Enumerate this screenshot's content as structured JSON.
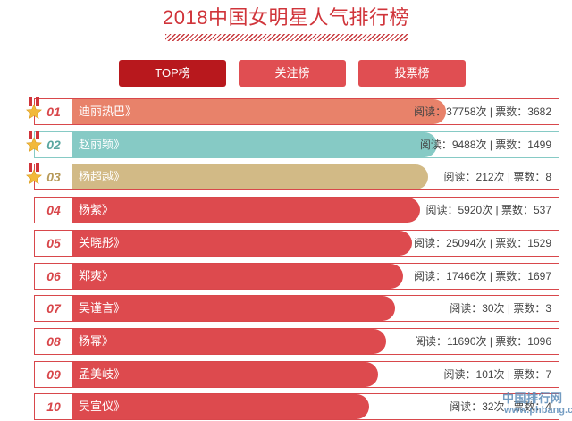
{
  "page": {
    "title": "2018中国女明星人气排行榜"
  },
  "tabs": [
    {
      "label": "TOP榜",
      "active": true
    },
    {
      "label": "关注榜",
      "active": false
    },
    {
      "label": "投票榜",
      "active": false
    }
  ],
  "colors": {
    "accent": "#d0343a",
    "tab_active": "#b8181d",
    "tab_inactive": "#e04e52",
    "bar_red": "#dd4a4e",
    "bar_rank1": "#e8826a",
    "bar_rank2": "#86cac5",
    "bar_rank3": "#d2ba86"
  },
  "ranking": [
    {
      "rank": "01",
      "name": "迪丽热巴》",
      "stats": "阅读：37758次 | 票数：3682",
      "bar_color": "#e8826a",
      "num_color": "#d8474b",
      "medal": true,
      "bar_fraction": 1.0
    },
    {
      "rank": "02",
      "name": "赵丽颖》",
      "stats": "阅读：9488次 | 票数：1499",
      "bar_color": "#86cac5",
      "num_color": "#5aa6a0",
      "medal": true,
      "bar_fraction": 0.975
    },
    {
      "rank": "03",
      "name": "杨超越》",
      "stats": "阅读：212次 | 票数：8",
      "bar_color": "#d2ba86",
      "num_color": "#b79a5a",
      "medal": true,
      "bar_fraction": 0.952
    },
    {
      "rank": "04",
      "name": "杨紫》",
      "stats": "阅读：5920次 | 票数：537",
      "bar_color": "#dd4a4e",
      "num_color": "#d8474b",
      "medal": false,
      "bar_fraction": 0.93
    },
    {
      "rank": "05",
      "name": "关晓彤》",
      "stats": "阅读：25094次 | 票数：1529",
      "bar_color": "#dd4a4e",
      "num_color": "#d8474b",
      "medal": false,
      "bar_fraction": 0.908
    },
    {
      "rank": "06",
      "name": "郑爽》",
      "stats": "阅读：17466次 | 票数：1697",
      "bar_color": "#dd4a4e",
      "num_color": "#d8474b",
      "medal": false,
      "bar_fraction": 0.885
    },
    {
      "rank": "07",
      "name": "吴谨言》",
      "stats": "阅读：30次 | 票数：3",
      "bar_color": "#dd4a4e",
      "num_color": "#d8474b",
      "medal": false,
      "bar_fraction": 0.863
    },
    {
      "rank": "08",
      "name": "杨幂》",
      "stats": "阅读：11690次 | 票数：1096",
      "bar_color": "#dd4a4e",
      "num_color": "#d8474b",
      "medal": false,
      "bar_fraction": 0.84
    },
    {
      "rank": "09",
      "name": "孟美岐》",
      "stats": "阅读：101次 | 票数：7",
      "bar_color": "#dd4a4e",
      "num_color": "#d8474b",
      "medal": false,
      "bar_fraction": 0.818
    },
    {
      "rank": "10",
      "name": "吴宣仪》",
      "stats": "阅读：32次 | 票数：4",
      "bar_color": "#dd4a4e",
      "num_color": "#d8474b",
      "medal": false,
      "bar_fraction": 0.795
    }
  ],
  "watermark": {
    "line1": "中国排行网",
    "line2": "www.phbang.cn"
  }
}
